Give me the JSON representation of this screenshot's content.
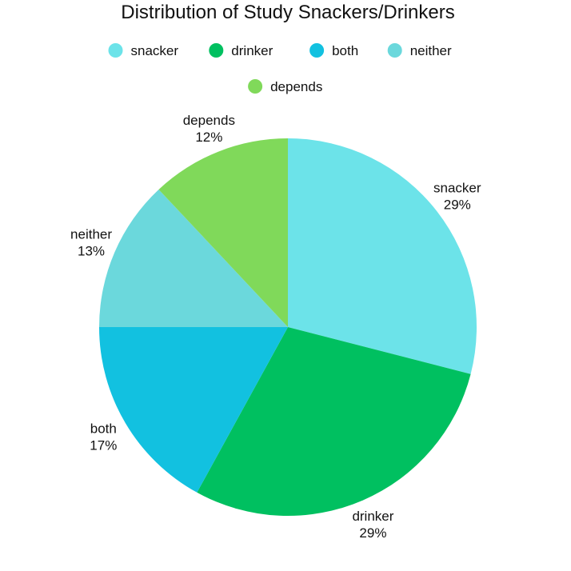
{
  "chart_data": {
    "type": "pie",
    "title": "Distribution of Study Snackers/Drinkers",
    "legend_position": "top",
    "slices": [
      {
        "label": "snacker",
        "value": 29,
        "value_label": "29%",
        "color": "#6ce3e9"
      },
      {
        "label": "drinker",
        "value": 29,
        "value_label": "29%",
        "color": "#00c060"
      },
      {
        "label": "both",
        "value": 17,
        "value_label": "17%",
        "color": "#12c1e0"
      },
      {
        "label": "neither",
        "value": 13,
        "value_label": "13%",
        "color": "#6bd8dc"
      },
      {
        "label": "depends",
        "value": 12,
        "value_label": "12%",
        "color": "#80d95a"
      }
    ]
  }
}
